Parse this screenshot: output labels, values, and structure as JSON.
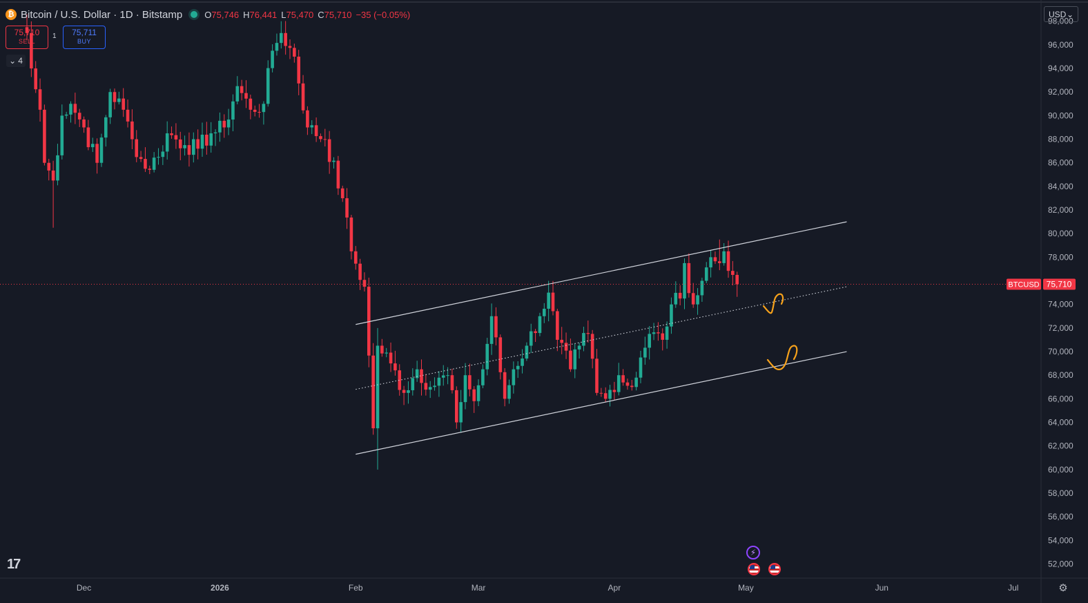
{
  "header": {
    "title": "Bitcoin / U.S. Dollar · 1D · Bitstamp",
    "coin_symbol": "₿",
    "open_label": "O",
    "open": "75,746",
    "high_label": "H",
    "high": "76,441",
    "low_label": "L",
    "low": "75,470",
    "close_label": "C",
    "close": "75,710",
    "change": "−35 (−0.05%)"
  },
  "trade": {
    "sell_price": "75,710",
    "sell_label": "SELL",
    "spread": "1",
    "buy_price": "75,711",
    "buy_label": "BUY"
  },
  "collapse_count": "4",
  "currency": "USD",
  "price_tag": {
    "symbol": "BTCUSD",
    "price": "75,710",
    "value": 75710
  },
  "colors": {
    "up": "#22ab94",
    "down": "#f23645",
    "background": "#161a25",
    "channel": "#d1d4dc",
    "annotation": "#f7a21b"
  },
  "icons": [
    "bitcoin-coin-icon",
    "chevron-down-icon",
    "tradingview-logo-icon",
    "settings-icon",
    "lightning-event-icon",
    "us-flag-icon"
  ],
  "chart_data": {
    "type": "candlestick",
    "title": "Bitcoin / U.S. Dollar · 1D · Bitstamp",
    "y_axis": {
      "ylim": [
        50800,
        99800
      ],
      "ticks": [
        52000,
        54000,
        56000,
        58000,
        60000,
        62000,
        64000,
        66000,
        68000,
        70000,
        72000,
        74000,
        78000,
        80000,
        82000,
        84000,
        86000,
        88000,
        90000,
        92000,
        94000,
        96000,
        98000
      ],
      "position": "right"
    },
    "x_axis": {
      "labels": [
        "Dec",
        "2026",
        "Feb",
        "Mar",
        "Apr",
        "May",
        "Jun",
        "Jul"
      ],
      "label_dates": [
        "2025-12-01",
        "2026-01-01",
        "2026-02-01",
        "2026-03-01",
        "2026-04-01",
        "2026-05-01",
        "2026-06-01",
        "2026-07-01"
      ]
    },
    "grid": false,
    "first_date": "2025-11-18",
    "close_path": [
      [
        "2025-11-18",
        97000
      ],
      [
        "2025-11-19",
        94000
      ],
      [
        "2025-11-21",
        90500
      ],
      [
        "2025-11-22",
        86000
      ],
      [
        "2025-11-24",
        84500
      ],
      [
        "2025-11-26",
        90000
      ],
      [
        "2025-11-28",
        91000
      ],
      [
        "2025-12-01",
        89000
      ],
      [
        "2025-12-04",
        86000
      ],
      [
        "2025-12-07",
        92000
      ],
      [
        "2025-12-10",
        90500
      ],
      [
        "2025-12-12",
        88000
      ],
      [
        "2025-12-15",
        85500
      ],
      [
        "2025-12-18",
        86500
      ],
      [
        "2025-12-20",
        88500
      ],
      [
        "2025-12-24",
        87500
      ],
      [
        "2025-12-27",
        87200
      ],
      [
        "2025-12-30",
        88500
      ],
      [
        "2026-01-02",
        89000
      ],
      [
        "2026-01-05",
        92500
      ],
      [
        "2026-01-08",
        90500
      ],
      [
        "2026-01-11",
        91000
      ],
      [
        "2026-01-13",
        95500
      ],
      [
        "2026-01-15",
        97000
      ],
      [
        "2026-01-18",
        95000
      ],
      [
        "2026-01-21",
        89000
      ],
      [
        "2026-01-25",
        88000
      ],
      [
        "2026-01-29",
        83000
      ],
      [
        "2026-01-31",
        78500
      ],
      [
        "2026-02-03",
        75500
      ],
      [
        "2026-02-05",
        63500
      ],
      [
        "2026-02-06",
        70500
      ],
      [
        "2026-02-09",
        69000
      ],
      [
        "2026-02-12",
        66500
      ],
      [
        "2026-02-15",
        68500
      ],
      [
        "2026-02-18",
        67000
      ],
      [
        "2026-02-22",
        68000
      ],
      [
        "2026-02-24",
        64000
      ],
      [
        "2026-02-26",
        68000
      ],
      [
        "2026-02-28",
        65800
      ],
      [
        "2026-03-02",
        68500
      ],
      [
        "2026-03-04",
        73000
      ],
      [
        "2026-03-07",
        66000
      ],
      [
        "2026-03-09",
        68500
      ],
      [
        "2026-03-12",
        70500
      ],
      [
        "2026-03-15",
        73000
      ],
      [
        "2026-03-17",
        75000
      ],
      [
        "2026-03-19",
        71000
      ],
      [
        "2026-03-22",
        68500
      ],
      [
        "2026-03-24",
        70500
      ],
      [
        "2026-03-26",
        71500
      ],
      [
        "2026-03-28",
        66500
      ],
      [
        "2026-03-30",
        66000
      ],
      [
        "2026-04-02",
        68000
      ],
      [
        "2026-04-05",
        67000
      ],
      [
        "2026-04-07",
        69500
      ],
      [
        "2026-04-09",
        71500
      ],
      [
        "2026-04-12",
        71000
      ],
      [
        "2026-04-14",
        74000
      ],
      [
        "2026-04-16",
        74500
      ],
      [
        "2026-04-17",
        77500
      ],
      [
        "2026-04-19",
        74000
      ],
      [
        "2026-04-21",
        76000
      ],
      [
        "2026-04-23",
        78000
      ],
      [
        "2026-04-25",
        77500
      ],
      [
        "2026-04-26",
        78500
      ],
      [
        "2026-04-28",
        76500
      ],
      [
        "2026-04-29",
        75710
      ]
    ],
    "wick_events": [
      {
        "date": "2025-11-24",
        "low": 80500
      },
      {
        "date": "2026-02-06",
        "low": 60000
      },
      {
        "date": "2026-02-06",
        "high": 72000
      },
      {
        "date": "2026-01-15",
        "high": 98000
      },
      {
        "date": "2026-03-17",
        "high": 76000
      },
      {
        "date": "2026-04-25",
        "high": 79500
      }
    ],
    "channel": {
      "upper": {
        "start": [
          "2026-02-01",
          72300
        ],
        "end": [
          "2026-05-24",
          81000
        ]
      },
      "middle": {
        "start": [
          "2026-02-01",
          66800
        ],
        "end": [
          "2026-05-24",
          75500
        ],
        "style": "dotted"
      },
      "lower": {
        "start": [
          "2026-02-01",
          61300
        ],
        "end": [
          "2026-05-24",
          70000
        ]
      }
    },
    "current_price": 75710
  }
}
